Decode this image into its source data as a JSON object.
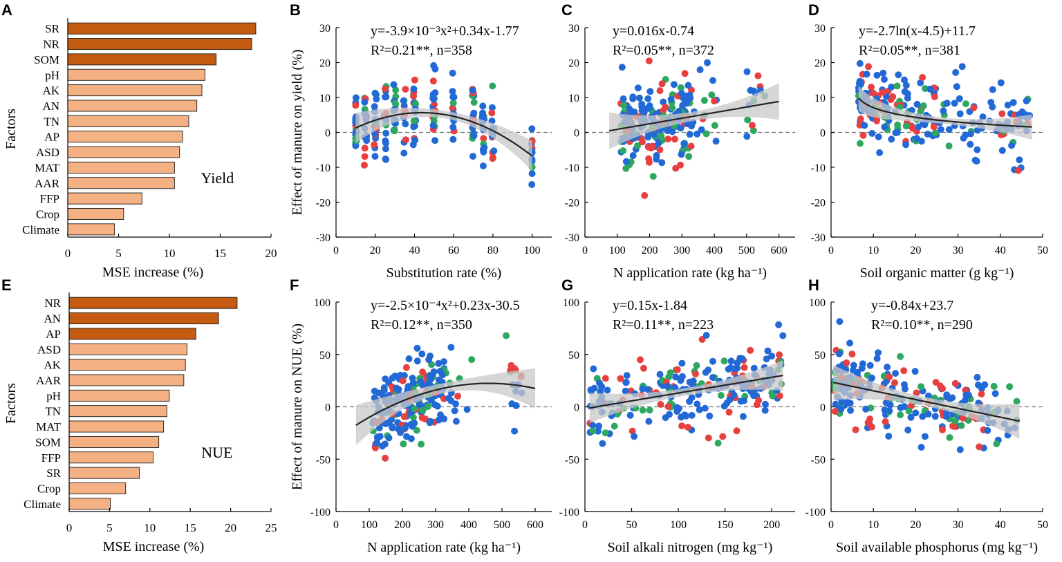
{
  "colors": {
    "bar_top": "#c55a11",
    "bar_rest": "#f4b183",
    "dot_red": "#e84040",
    "dot_green": "#2ea860",
    "dot_blue": "#2369d6"
  },
  "chart_data": [
    {
      "panel": "A",
      "type": "bar",
      "orientation": "horizontal",
      "ylabel": "Factors",
      "xlabel": "MSE increase (%)",
      "annotation": "Yield",
      "xlim": [
        0,
        20
      ],
      "xticks": [
        0,
        5,
        10,
        15,
        20
      ],
      "categories": [
        "SR",
        "NR",
        "SOM",
        "pH",
        "AK",
        "AN",
        "TN",
        "AP",
        "ASD",
        "MAT",
        "AAR",
        "FFP",
        "Crop",
        "Climate"
      ],
      "values": [
        18.5,
        18.1,
        14.6,
        13.5,
        13.2,
        12.7,
        11.9,
        11.3,
        11.0,
        10.5,
        10.5,
        7.3,
        5.5,
        4.6
      ],
      "highlight_count": 3
    },
    {
      "panel": "B",
      "type": "scatter",
      "ylabel": "Effect of manure on yield (%)",
      "xlabel": "Substitution rate (%)",
      "xlim": [
        0,
        110
      ],
      "ylim": [
        -30,
        30
      ],
      "xticks": [
        0,
        20,
        40,
        60,
        80,
        100
      ],
      "yticks": [
        -30,
        -20,
        -10,
        0,
        10,
        20,
        30
      ],
      "equation": "y=-3.9×10⁻³x²+0.34x-1.77",
      "stats": "R²=0.21**, n=358",
      "fit": {
        "kind": "quadratic",
        "coef": [
          -0.0039,
          0.34,
          -1.77
        ],
        "xrange": [
          10,
          100
        ]
      },
      "band_width": 1.8
    },
    {
      "panel": "C",
      "type": "scatter",
      "ylabel": "",
      "xlabel": "N application rate (kg ha⁻¹)",
      "xlim": [
        0,
        650
      ],
      "ylim": [
        -30,
        30
      ],
      "xticks": [
        0,
        100,
        200,
        300,
        400,
        500,
        600
      ],
      "yticks": [
        -30,
        -20,
        -10,
        0,
        10,
        20,
        30
      ],
      "equation": "y=0.016x-0.74",
      "stats": "R²=0.05**, n=372",
      "fit": {
        "kind": "linear",
        "coef": [
          0.016,
          -0.74
        ],
        "xrange": [
          75,
          600
        ]
      },
      "band_width": 2.2
    },
    {
      "panel": "D",
      "type": "scatter",
      "ylabel": "",
      "xlabel": "Soil organic matter (g kg⁻¹)",
      "xlim": [
        0,
        50
      ],
      "ylim": [
        -30,
        30
      ],
      "xticks": [
        0,
        10,
        20,
        30,
        40,
        50
      ],
      "yticks": [
        -30,
        -20,
        -10,
        0,
        10,
        20,
        30
      ],
      "equation": "y=-2.7ln(x-4.5)+11.7",
      "stats": "R²=0.05**, n=381",
      "fit": {
        "kind": "log",
        "coef": [
          -2.7,
          4.5,
          11.7
        ],
        "xrange": [
          6.5,
          47.5
        ]
      },
      "band_width": 1.5
    },
    {
      "panel": "E",
      "type": "bar",
      "orientation": "horizontal",
      "ylabel": "Factors",
      "xlabel": "MSE increase (%)",
      "annotation": "NUE",
      "xlim": [
        0,
        25
      ],
      "xticks": [
        0,
        5,
        10,
        15,
        20,
        25
      ],
      "categories": [
        "NR",
        "AN",
        "AP",
        "ASD",
        "AK",
        "AAR",
        "pH",
        "TN",
        "MAT",
        "SOM",
        "FFP",
        "SR",
        "Crop",
        "Climate"
      ],
      "values": [
        20.8,
        18.5,
        15.7,
        14.6,
        14.4,
        14.2,
        12.4,
        12.1,
        11.7,
        11.1,
        10.4,
        8.7,
        7.0,
        5.1
      ],
      "highlight_count": 3
    },
    {
      "panel": "F",
      "type": "scatter",
      "ylabel": "Effect of manure on NUE (%)",
      "xlabel": "N application rate (kg ha⁻¹)",
      "xlim": [
        0,
        650
      ],
      "ylim": [
        -100,
        100
      ],
      "xticks": [
        0,
        100,
        200,
        300,
        400,
        500,
        600
      ],
      "yticks": [
        -100,
        -50,
        0,
        50,
        100
      ],
      "equation": "y=-2.5×10⁻⁴x²+0.23x-30.5",
      "stats": "R²=0.12**, n=350",
      "fit": {
        "kind": "quadratic",
        "coef": [
          -0.00025,
          0.23,
          -30.5
        ],
        "xrange": [
          60,
          600
        ]
      },
      "band_width": 8
    },
    {
      "panel": "G",
      "type": "scatter",
      "ylabel": "",
      "xlabel": "Soil alkali nitrogen (mg kg⁻¹)",
      "xlim": [
        0,
        225
      ],
      "ylim": [
        -100,
        100
      ],
      "xticks": [
        0,
        50,
        100,
        150,
        200
      ],
      "yticks": [
        -100,
        -50,
        0,
        50,
        100
      ],
      "equation": "y=0.15x-1.84",
      "stats": "R²=0.11**, n=223",
      "fit": {
        "kind": "linear",
        "coef": [
          0.15,
          -1.84
        ],
        "xrange": [
          5,
          212
        ]
      },
      "band_width": 6
    },
    {
      "panel": "H",
      "type": "scatter",
      "ylabel": "",
      "xlabel": "Soil available phosphorus (mg kg⁻¹)",
      "xlim": [
        0,
        50
      ],
      "ylim": [
        -100,
        100
      ],
      "xticks": [
        0,
        10,
        20,
        30,
        40,
        50
      ],
      "yticks": [
        -100,
        -50,
        0,
        50,
        100
      ],
      "equation": "y=-0.84x+23.7",
      "stats": "R²=0.10**, n=290",
      "fit": {
        "kind": "linear",
        "coef": [
          -0.84,
          23.7
        ],
        "xrange": [
          0.5,
          44.5
        ]
      },
      "band_width": 7
    }
  ]
}
